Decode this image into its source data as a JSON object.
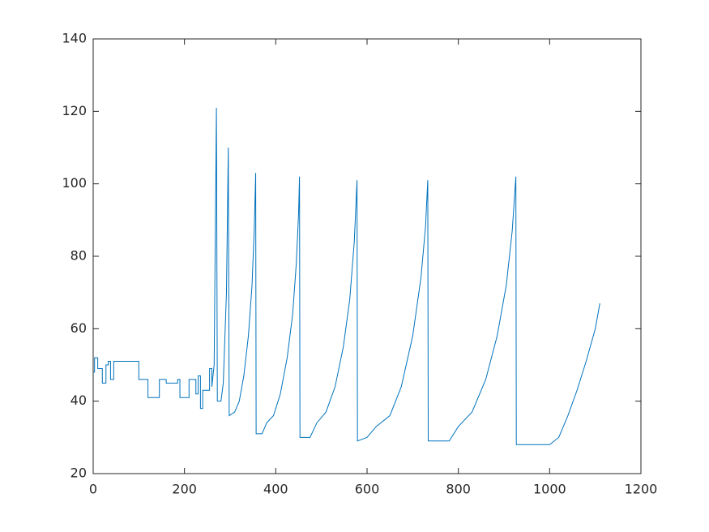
{
  "chart_data": {
    "type": "line",
    "x": [
      0,
      3,
      3,
      10,
      10,
      20,
      20,
      28,
      28,
      33,
      33,
      38,
      38,
      45,
      45,
      100,
      100,
      120,
      120,
      145,
      145,
      160,
      160,
      185,
      185,
      190,
      190,
      210,
      210,
      225,
      225,
      230,
      230,
      235,
      235,
      240,
      240,
      255,
      255,
      260,
      260,
      265,
      270,
      272,
      280,
      285,
      292,
      296,
      298,
      310,
      320,
      330,
      340,
      348,
      353,
      356,
      357,
      370,
      380,
      395,
      410,
      425,
      437,
      445,
      450,
      452,
      453,
      475,
      490,
      510,
      530,
      548,
      562,
      572,
      578,
      579,
      600,
      620,
      650,
      675,
      700,
      718,
      728,
      733,
      734,
      780,
      800,
      830,
      860,
      885,
      905,
      918,
      926,
      927,
      1000,
      1020,
      1040,
      1060,
      1080,
      1100,
      1110
    ],
    "values": [
      48,
      48,
      52,
      52,
      49,
      49,
      45,
      45,
      50,
      50,
      51,
      51,
      46,
      46,
      51,
      51,
      46,
      46,
      41,
      41,
      46,
      46,
      45,
      45,
      46,
      46,
      41,
      41,
      46,
      46,
      42,
      42,
      47,
      47,
      38,
      38,
      43,
      43,
      49,
      49,
      44,
      50,
      121,
      40,
      40,
      45,
      70,
      110,
      36,
      37,
      40,
      47,
      58,
      72,
      88,
      103,
      31,
      31,
      34,
      36,
      42,
      52,
      64,
      78,
      92,
      102,
      30,
      30,
      34,
      37,
      44,
      55,
      68,
      84,
      101,
      29,
      30,
      33,
      36,
      44,
      58,
      74,
      88,
      101,
      29,
      29,
      33,
      37,
      46,
      58,
      72,
      87,
      102,
      28,
      28,
      30,
      36,
      43,
      51,
      60,
      67
    ],
    "color": "#0072bd",
    "xlim": [
      0,
      1200
    ],
    "xticks": [
      0,
      200,
      400,
      600,
      800,
      1000,
      1200
    ],
    "ylim": [
      20,
      140
    ],
    "yticks": [
      20,
      40,
      60,
      80,
      100,
      120,
      140
    ],
    "grid": false
  }
}
